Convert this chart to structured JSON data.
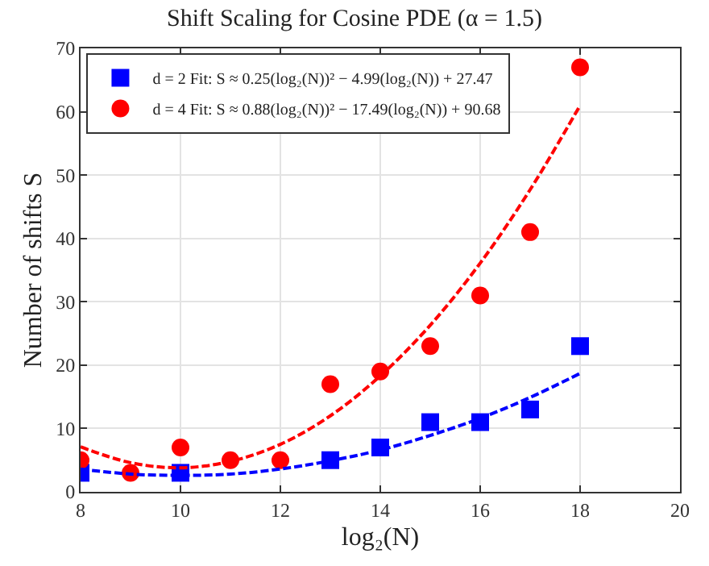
{
  "chart_data": {
    "type": "scatter",
    "title": "Shift Scaling for Cosine PDE (α = 1.5)",
    "xlabel": "log₂(N)",
    "ylabel": "Number of shifts S",
    "xlim": [
      8,
      20
    ],
    "xticks": [
      8,
      10,
      12,
      14,
      16,
      18,
      20
    ],
    "ylim": [
      0,
      70
    ],
    "yticks": [
      0,
      10,
      20,
      30,
      40,
      50,
      60,
      70
    ],
    "grid": true,
    "legend": "top left",
    "series": [
      {
        "name": "d = 2 Fit: S ≈ 0.25(log₂(N))² − 4.99(log₂(N)) + 27.47",
        "color": "#0000ff",
        "marker": "square",
        "x": [
          8,
          9,
          10,
          11,
          12,
          13,
          14,
          15,
          16,
          17,
          18
        ],
        "values": [
          3,
          null,
          3,
          null,
          null,
          5,
          7,
          11,
          11,
          13,
          23
        ]
      },
      {
        "name": "d = 4 Fit: S ≈ 0.88(log₂(N))² − 17.49(log₂(N)) + 90.68",
        "color": "#ff0000",
        "marker": "circle",
        "x": [
          8,
          9,
          10,
          11,
          12,
          13,
          14,
          15,
          16,
          17,
          18
        ],
        "values": [
          5,
          3,
          7,
          5,
          5,
          17,
          19,
          23,
          31,
          41,
          67
        ]
      },
      {
        "type": "line",
        "color": "#0000ff",
        "line_style": "dashed",
        "x": [
          8,
          9,
          10,
          11,
          12,
          13,
          14,
          15,
          16,
          17,
          18
        ],
        "values": [
          3.6,
          2.8,
          2.6,
          2.8,
          3.6,
          4.9,
          6.6,
          8.9,
          11.6,
          14.9,
          18.7
        ]
      },
      {
        "type": "line",
        "color": "#ff0000",
        "line_style": "dashed",
        "x": [
          8,
          9,
          10,
          11,
          12,
          13,
          14,
          15,
          16,
          17,
          18
        ],
        "values": [
          7.1,
          4.6,
          3.8,
          4.8,
          7.5,
          12.0,
          18.3,
          26.3,
          36.1,
          47.7,
          61.0
        ]
      }
    ]
  }
}
